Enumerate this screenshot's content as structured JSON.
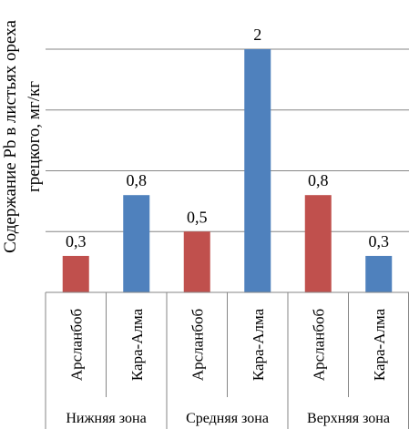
{
  "chart_data": {
    "type": "bar",
    "ylabel": "Содержание Pb в листьях ореха грецкого, мг/кг",
    "ylabel_lines": [
      "Содержание Pb в листьях ореха",
      "грецкого, мг/кг"
    ],
    "ylim": [
      0,
      2
    ],
    "grid": true,
    "groups": [
      "Нижняя зона",
      "Средняя зона",
      "Верхняя зона"
    ],
    "bars": [
      {
        "group": "Нижняя зона",
        "category": "Арсланбоб",
        "value": 0.3,
        "label": "0,3",
        "color": "#c0504d"
      },
      {
        "group": "Нижняя зона",
        "category": "Кара-Алма",
        "value": 0.8,
        "label": "0,8",
        "color": "#4f81bd"
      },
      {
        "group": "Средняя зона",
        "category": "Арсланбоб",
        "value": 0.5,
        "label": "0,5",
        "color": "#c0504d"
      },
      {
        "group": "Средняя зона",
        "category": "Кара-Алма",
        "value": 2,
        "label": "2",
        "color": "#4f81bd"
      },
      {
        "group": "Верхняя зона",
        "category": "Арсланбоб",
        "value": 0.8,
        "label": "0,8",
        "color": "#c0504d"
      },
      {
        "group": "Верхняя зона",
        "category": "Кара-Алма",
        "value": 0.3,
        "label": "0,3",
        "color": "#4f81bd"
      }
    ]
  }
}
